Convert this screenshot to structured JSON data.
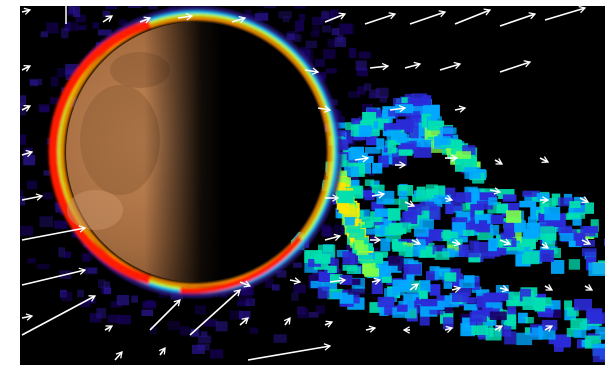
{
  "scene": {
    "subject": "planet-ion-escape-visualization",
    "background_color": "#000000",
    "border_color": "#ffffff",
    "planet_surface_color": "#b07a4a",
    "planet_dark_side_color": "#000000",
    "ring_colors": [
      "#ff1a00",
      "#ff8c00",
      "#ffe600",
      "#9dff3a",
      "#00d0ff"
    ],
    "plume_colors": [
      "#1a0066",
      "#2b2bd9",
      "#00a8ff",
      "#00e0b0",
      "#7dff4a",
      "#ffe600"
    ],
    "arrow_color": "#ffffff"
  }
}
